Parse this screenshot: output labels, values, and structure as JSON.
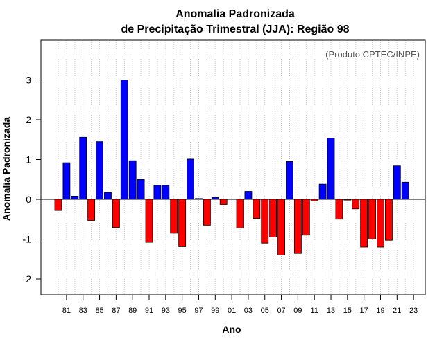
{
  "chart_data": {
    "type": "bar",
    "title": [
      "Anomalia Padronizada",
      "de Precipitação Trimestral (JJA): Região 98"
    ],
    "credit": "(Produto:CPTEC/INPE)",
    "xlabel": "Ano",
    "ylabel": "Anomalia Padronizada",
    "ylim": [
      -2.4,
      4.0
    ],
    "yticks": [
      -2,
      -1,
      0,
      1,
      2,
      3
    ],
    "grid": true,
    "colors": {
      "positive": "#0000ff",
      "negative": "#ff0000",
      "grid": "#cccccc",
      "border": "#000000"
    },
    "tick_labels": [
      "81",
      "83",
      "85",
      "87",
      "89",
      "91",
      "93",
      "95",
      "97",
      "99",
      "01",
      "03",
      "05",
      "07",
      "09",
      "11",
      "13",
      "15",
      "17",
      "19",
      "21",
      "23"
    ],
    "categories": [
      "1980",
      "1981",
      "1982",
      "1983",
      "1984",
      "1985",
      "1986",
      "1987",
      "1988",
      "1989",
      "1990",
      "1991",
      "1992",
      "1993",
      "1994",
      "1995",
      "1996",
      "1997",
      "1998",
      "1999",
      "2000",
      "2001",
      "2002",
      "2003",
      "2004",
      "2005",
      "2006",
      "2007",
      "2008",
      "2009",
      "2010",
      "2011",
      "2012",
      "2013",
      "2014",
      "2015",
      "2016",
      "2017",
      "2018",
      "2019",
      "2020",
      "2021",
      "2022",
      "2023"
    ],
    "values": [
      -0.28,
      0.92,
      0.08,
      1.56,
      -0.53,
      1.45,
      0.17,
      -0.71,
      3.0,
      0.97,
      0.5,
      -1.08,
      0.35,
      0.35,
      -0.85,
      -1.19,
      1.01,
      0.02,
      -0.65,
      0.05,
      -0.13,
      0.0,
      -0.72,
      0.2,
      -0.48,
      -1.1,
      -0.95,
      -1.4,
      0.95,
      -1.36,
      -0.9,
      -0.04,
      0.38,
      1.54,
      -0.5,
      -0.02,
      -0.24,
      -1.2,
      -1.0,
      -1.2,
      -1.03,
      0.84,
      0.43,
      0.0
    ]
  }
}
